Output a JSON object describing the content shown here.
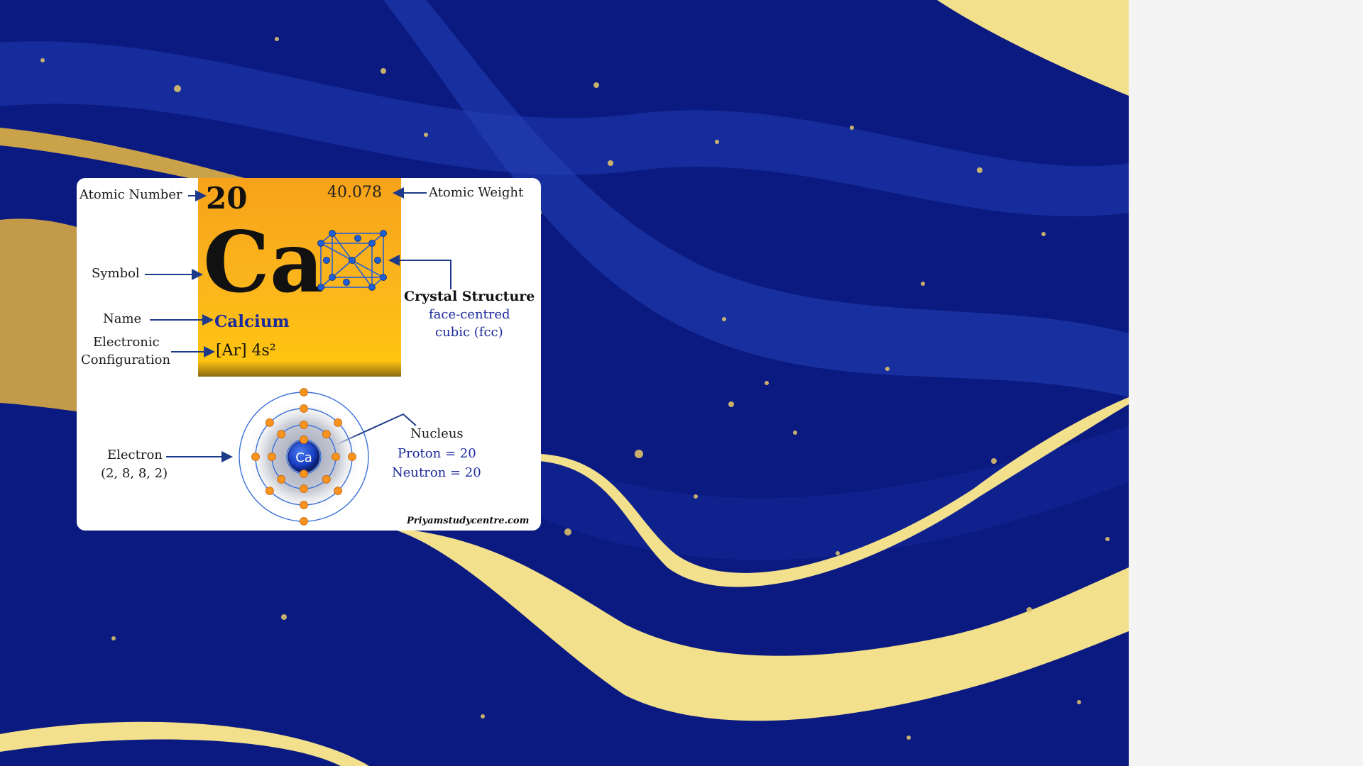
{
  "element": {
    "atomic_number": "20",
    "atomic_weight": "40.078",
    "symbol": "Ca",
    "name": "Calcium",
    "electronic_configuration": "[Ar] 4s²"
  },
  "labels": {
    "atomic_number": "Atomic Number",
    "atomic_weight": "Atomic Weight",
    "symbol": "Symbol",
    "name": "Name",
    "electronic_line1": "Electronic",
    "electronic_line2": "Configuration",
    "crystal_title": "Crystal Structure",
    "crystal_line1": "face-centred",
    "crystal_line2": "cubic (fcc)",
    "electron_title": "Electron",
    "electron_shells": "(2, 8, 8, 2)",
    "nucleus": "Nucleus",
    "proton": "Proton = 20",
    "neutron": "Neutron = 20",
    "nucleus_symbol": "Ca"
  },
  "shells": [
    2,
    8,
    8,
    2
  ],
  "watermark": "Priyamstudycentre.com",
  "colors": {
    "background_blue": "#0b1a80",
    "gold_stripe": "#f3e08c",
    "tile_orange": "#f9a81b",
    "name_blue": "#1b2a9a",
    "electron_orange": "#f7931e",
    "nucleus_blue": "#1a3fc4"
  }
}
